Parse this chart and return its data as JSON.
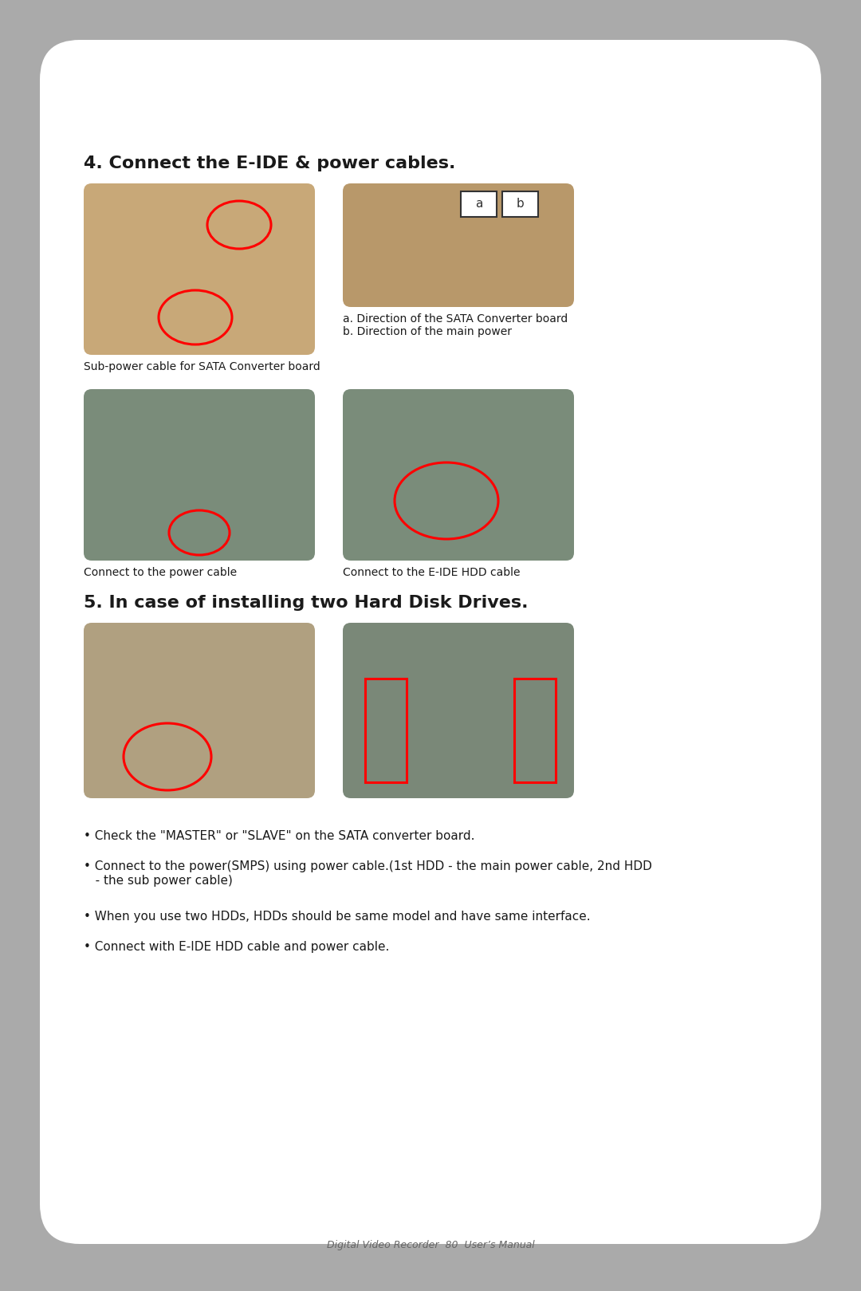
{
  "bg_color": "#aaaaaa",
  "card_color": "#ffffff",
  "title_section4": "4. Connect the E-IDE & power cables.",
  "title_section5": "5. In case of installing two Hard Disk Drives.",
  "caption_img1": "Sub-power cable for SATA Converter board",
  "caption_img2a": "a. Direction of the SATA Converter board",
  "caption_img2b": "b. Direction of the main power",
  "caption_img3": "Connect to the power cable",
  "caption_img4": "Connect to the E-IDE HDD cable",
  "bullet1": "• Check the \"MASTER\" or \"SLAVE\" on the SATA converter board.",
  "bullet2_line1": "• Connect to the power(SMPS) using power cable.(1st HDD - the main power cable, 2nd HDD",
  "bullet2_line2": "   - the sub power cable)",
  "bullet3": "• When you use two HDDs, HDDs should be same model and have same interface.",
  "bullet4": "• Connect with E-IDE HDD cable and power cable.",
  "footer": "Digital Video Recorder  80  User’s Manual",
  "text_color": "#1a1a1a",
  "section_title_size": 16,
  "caption_size": 10,
  "bullet_size": 11,
  "footer_size": 9,
  "img1_color": "#c8a878",
  "img2_color": "#b8986a",
  "img3_color": "#7a8c7a",
  "img4_color": "#7a8c7a",
  "img5_color": "#b0a080",
  "img6_color": "#7a8878"
}
